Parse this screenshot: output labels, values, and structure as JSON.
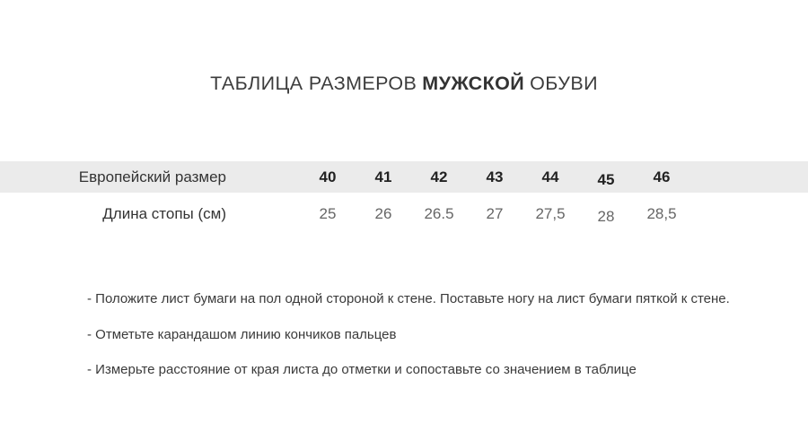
{
  "title": {
    "prefix": "ТАБЛИЦА РАЗМЕРОВ",
    "highlight": "МУЖСКОЙ",
    "suffix": "ОБУВИ"
  },
  "chart_data": {
    "type": "table",
    "title": "ТАБЛИЦА РАЗМЕРОВ МУЖСКОЙ ОБУВИ",
    "rows": [
      {
        "label": "Европейский размер",
        "values": [
          "40",
          "41",
          "42",
          "43",
          "44",
          "45",
          "46"
        ]
      },
      {
        "label": "Длина стопы (см)",
        "values": [
          "25",
          "26",
          "26.5",
          "27",
          "27,5",
          "28",
          "28,5"
        ]
      }
    ]
  },
  "table": {
    "header": {
      "label": "Европейский размер",
      "values": [
        "40",
        "41",
        "42",
        "43",
        "44",
        "45",
        "46"
      ]
    },
    "lengths": {
      "label": "Длина стопы (см)",
      "values": [
        "25",
        "26",
        "26.5",
        "27",
        "27,5",
        "28",
        "28,5"
      ]
    }
  },
  "instructions": [
    "- Положите лист бумаги на пол одной стороной к стене. Поставьте ногу на лист бумаги пяткой к стене.",
    "- Отметьте карандашом линию кончиков пальцев",
    "- Измерьте расстояние от края листа до отметки и сопоставьте со значением в таблице"
  ],
  "colors": {
    "band_background": "#ebebeb",
    "title_text": "#3c3c3c",
    "header_values": "#222222",
    "length_values": "#666666",
    "instruction_text": "#3a3a3a"
  }
}
